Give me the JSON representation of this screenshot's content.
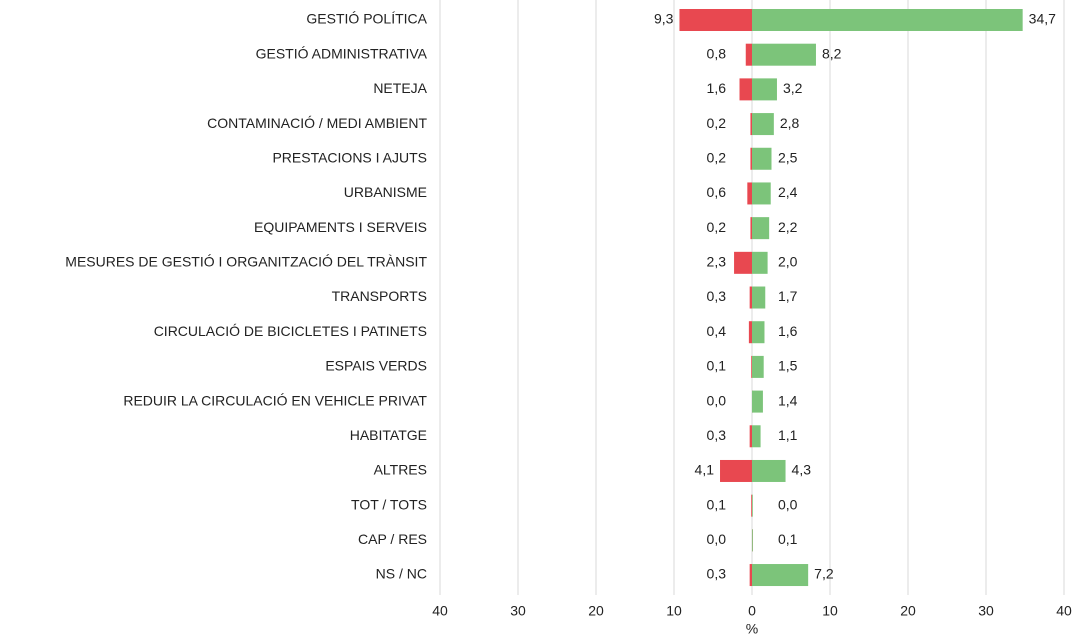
{
  "chart_data": {
    "type": "diverging-bar",
    "categories": [
      "GESTIÓ POLÍTICA",
      "GESTIÓ ADMINISTRATIVA",
      "NETEJA",
      "CONTAMINACIÓ / MEDI AMBIENT",
      "PRESTACIONS I AJUTS",
      "URBANISME",
      "EQUIPAMENTS I SERVEIS",
      "MESURES DE GESTIÓ I ORGANITZACIÓ DEL TRÀNSIT",
      "TRANSPORTS",
      "CIRCULACIÓ DE BICICLETES I PATINETS",
      "ESPAIS VERDS",
      "REDUIR LA CIRCULACIÓ EN VEHICLE PRIVAT",
      "HABITATGE",
      "ALTRES",
      "TOT / TOTS",
      "CAP / RES",
      "NS / NC"
    ],
    "series": [
      {
        "color": "#e84850",
        "values": [
          -9.3,
          -0.8,
          -1.6,
          -0.2,
          -0.2,
          -0.6,
          -0.2,
          -2.3,
          -0.3,
          -0.4,
          -0.1,
          0.0,
          -0.3,
          -4.1,
          -0.1,
          0.0,
          -0.3
        ],
        "value_labels": [
          "9,3",
          "0,8",
          "1,6",
          "0,2",
          "0,2",
          "0,6",
          "0,2",
          "2,3",
          "0,3",
          "0,4",
          "0,1",
          "0,0",
          "0,3",
          "4,1",
          "0,1",
          "0,0",
          "0,3"
        ]
      },
      {
        "color": "#7cc47a",
        "values": [
          34.7,
          8.2,
          3.2,
          2.8,
          2.5,
          2.4,
          2.2,
          2.0,
          1.7,
          1.6,
          1.5,
          1.4,
          1.1,
          4.3,
          0.0,
          0.1,
          7.2
        ],
        "value_labels": [
          "34,7",
          "8,2",
          "3,2",
          "2,8",
          "2,5",
          "2,4",
          "2,2",
          "2,0",
          "1,7",
          "1,6",
          "1,5",
          "1,4",
          "1,1",
          "4,3",
          "0,0",
          "0,1",
          "7,2"
        ]
      }
    ],
    "xlabel": "%",
    "xlim": [
      -40,
      40
    ],
    "xticks": [
      {
        "value": -40,
        "label": "40"
      },
      {
        "value": -30,
        "label": "30"
      },
      {
        "value": -20,
        "label": "20"
      },
      {
        "value": -10,
        "label": "10"
      },
      0,
      10,
      20,
      30,
      40
    ],
    "grid": true
  }
}
